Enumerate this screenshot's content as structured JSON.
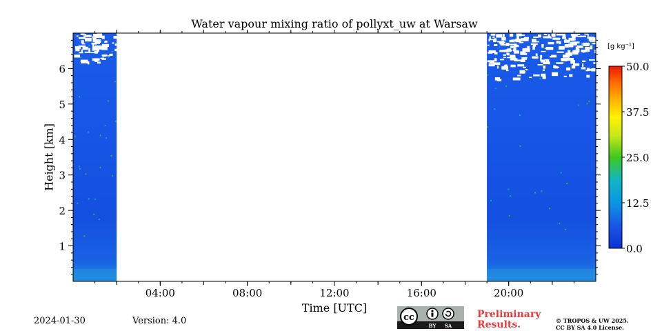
{
  "chart_data": {
    "type": "heatmap",
    "title": "Water vapour mixing ratio of pollyxt_uw at Warsaw",
    "xlabel": "Time [UTC]",
    "ylabel": "Height [km]",
    "x_ticks": [
      "04:00",
      "08:00",
      "12:00",
      "16:00",
      "20:00"
    ],
    "x_tick_hours": [
      4,
      8,
      12,
      16,
      20
    ],
    "xlim_hours": [
      0,
      24
    ],
    "y_ticks": [
      "1",
      "2",
      "3",
      "4",
      "5",
      "6"
    ],
    "y_tick_values": [
      1,
      2,
      3,
      4,
      5,
      6
    ],
    "ylim_km": [
      0,
      7
    ],
    "data_segments_hours": [
      [
        0,
        2
      ],
      [
        19,
        24
      ]
    ],
    "colorbar": {
      "unit": "[g kg⁻¹]",
      "ticks": [
        "0.0",
        "12.5",
        "25.0",
        "37.5",
        "50.0"
      ],
      "tick_values": [
        0,
        12.5,
        25,
        37.5,
        50
      ],
      "range": [
        0,
        50
      ],
      "colors": [
        "#0b31d6",
        "#1a55e6",
        "#0a96e0",
        "#10b5c8",
        "#3ec81e",
        "#c8e81a",
        "#fff200",
        "#ffb000",
        "#ff6a00",
        "#ee1a00"
      ]
    }
  },
  "footer": {
    "date": "2024-01-30",
    "version": "Version: 4.0",
    "preliminary_line1": "Preliminary",
    "preliminary_line2": "Results.",
    "copyright_line1": "© TROPOS & UW 2025.",
    "copyright_line2": "CC BY SA 4.0 License."
  },
  "license_badge": {
    "by": "BY",
    "sa": "SA"
  }
}
